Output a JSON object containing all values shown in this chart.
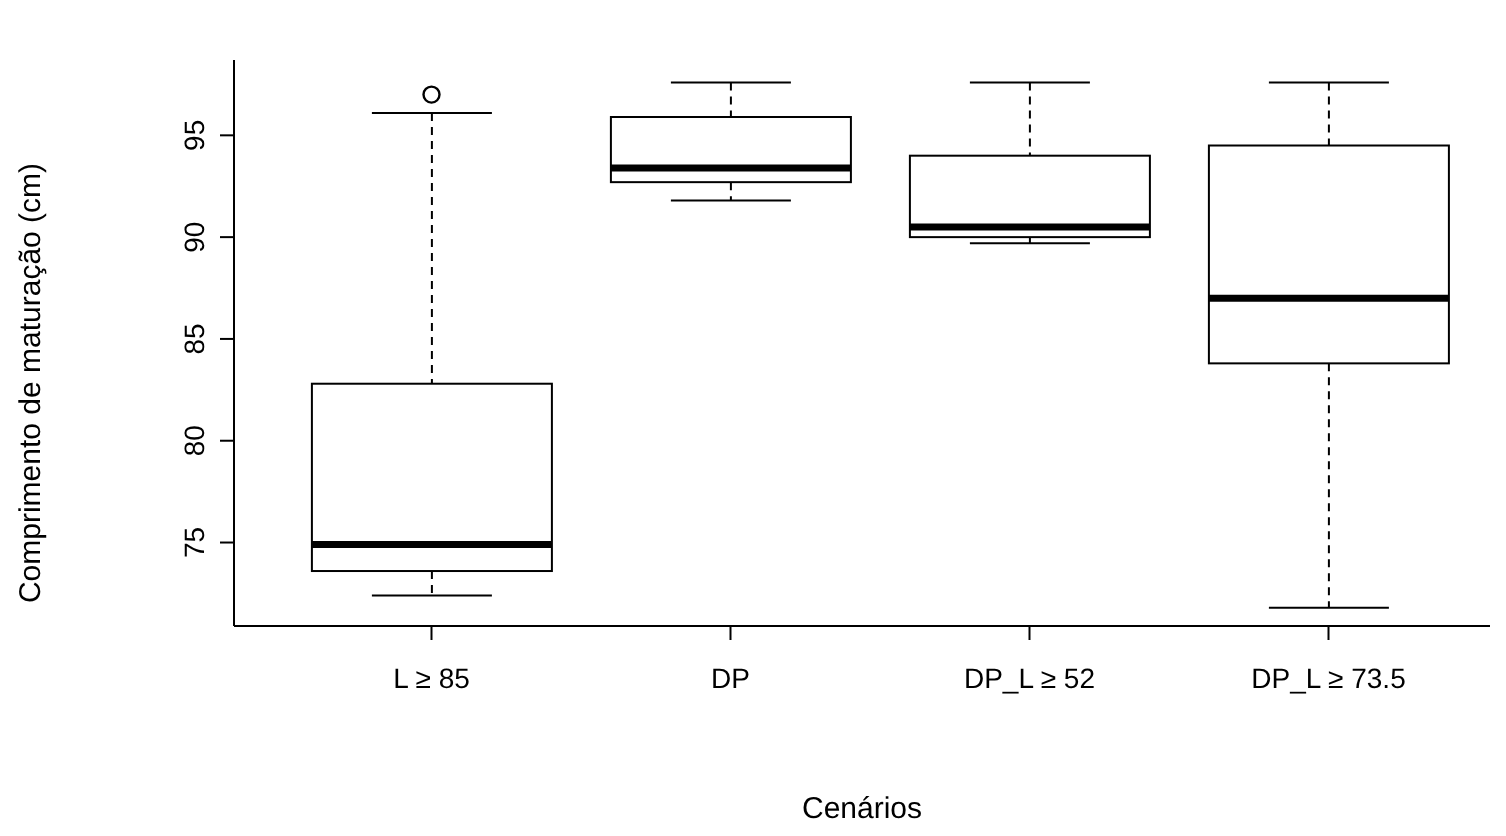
{
  "chart_data": {
    "type": "box",
    "xlabel": "Cenários",
    "ylabel": "Comprimento de maturação (cm)",
    "categories": [
      "L ≥ 85",
      "DP",
      "DP_L ≥ 52",
      "DP_L ≥ 73.5"
    ],
    "boxes": [
      {
        "low": 72.4,
        "q1": 73.6,
        "median": 74.9,
        "q3": 82.8,
        "high": 96.1,
        "outliers": [
          97.0
        ]
      },
      {
        "low": 91.8,
        "q1": 92.7,
        "median": 93.4,
        "q3": 95.9,
        "high": 97.6
      },
      {
        "low": 89.7,
        "q1": 90.0,
        "median": 90.5,
        "q3": 94.0,
        "high": 97.6
      },
      {
        "low": 71.8,
        "q1": 83.8,
        "median": 87.0,
        "q3": 94.5,
        "high": 97.6
      }
    ],
    "ylim": [
      70.9,
      98.7
    ],
    "yticks": [
      75,
      80,
      85,
      90,
      95
    ]
  }
}
